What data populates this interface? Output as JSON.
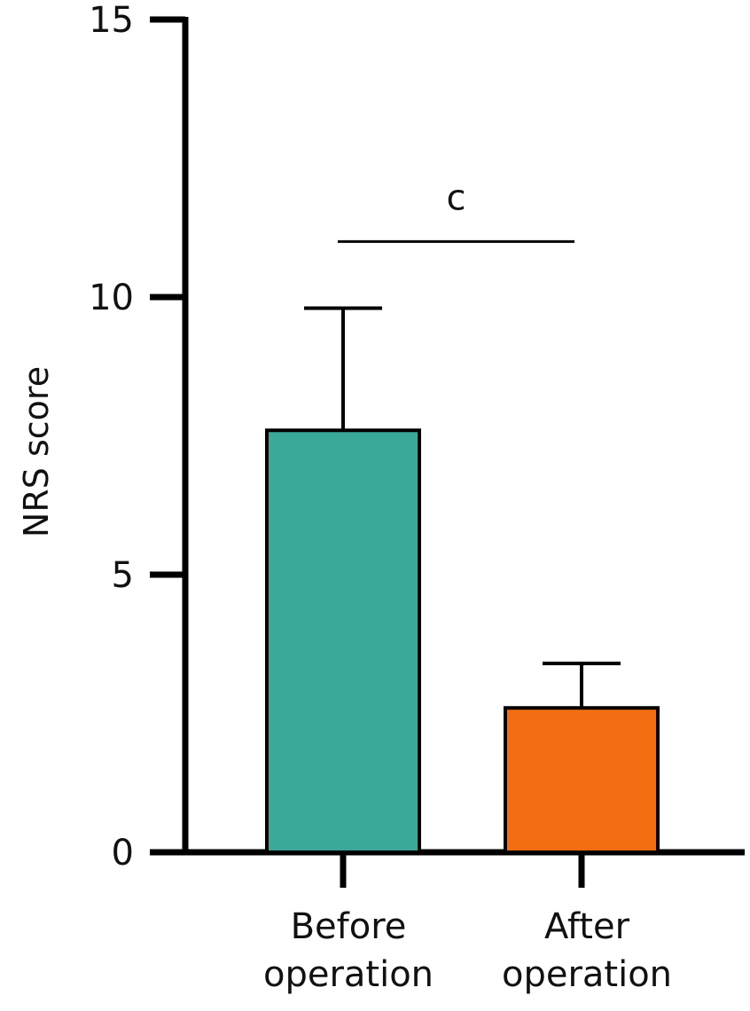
{
  "chart_data": {
    "type": "bar",
    "ylabel": "NRS score",
    "xlabel": "",
    "ylim": [
      0,
      15
    ],
    "yticks": [
      0,
      5,
      10,
      15
    ],
    "categories": [
      [
        "Before",
        "operation"
      ],
      [
        "After",
        "operation"
      ]
    ],
    "values": [
      7.6,
      2.6
    ],
    "error_upper": [
      9.8,
      3.4
    ],
    "colors": [
      "#3aa99a",
      "#f36d12"
    ],
    "significance": {
      "label": "c",
      "between": [
        0,
        1
      ],
      "level": 11
    }
  }
}
